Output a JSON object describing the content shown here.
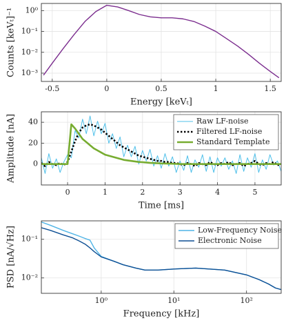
{
  "chart_data": [
    {
      "type": "line",
      "ylog": true,
      "grid": true,
      "xlabel": "Energy [keVₜ]",
      "ylabel": "Counts [keVₜ]⁻¹",
      "x": [
        -0.58,
        -0.5,
        -0.4,
        -0.3,
        -0.2,
        -0.1,
        0,
        0.1,
        0.2,
        0.3,
        0.4,
        0.5,
        0.6,
        0.7,
        0.8,
        0.9,
        1.0,
        1.1,
        1.2,
        1.3,
        1.4,
        1.5,
        1.58
      ],
      "series": [
        {
          "color": "#7b2d8e",
          "linewidth": 1.4,
          "values": [
            0.0008,
            0.003,
            0.015,
            0.07,
            0.3,
            0.9,
            1.8,
            1.5,
            1.0,
            0.65,
            0.5,
            0.45,
            0.45,
            0.4,
            0.3,
            0.18,
            0.1,
            0.045,
            0.02,
            0.008,
            0.003,
            0.0012,
            0.0006
          ]
        }
      ],
      "xlim": [
        -0.6,
        1.6
      ],
      "xticks": [
        -0.5,
        0,
        0.5,
        1,
        1.5
      ],
      "ylim": [
        0.0004,
        2.2
      ],
      "yticks": [
        {
          "value": 0.001,
          "label": "10⁻³"
        },
        {
          "value": 0.01,
          "label": "10⁻²"
        },
        {
          "value": 0.1,
          "label": "10⁻¹"
        },
        {
          "value": 1,
          "label": "10⁰"
        }
      ]
    },
    {
      "type": "line",
      "grid": true,
      "legend": "upper right",
      "xlabel": "Time [ms]",
      "ylabel": "Amplitude [nA]",
      "x": [
        -0.7,
        -0.6,
        -0.5,
        -0.4,
        -0.3,
        -0.2,
        -0.1,
        0.0,
        0.1,
        0.2,
        0.3,
        0.4,
        0.5,
        0.6,
        0.7,
        0.8,
        0.9,
        1.0,
        1.1,
        1.2,
        1.3,
        1.4,
        1.5,
        1.6,
        1.7,
        1.8,
        1.9,
        2.0,
        2.1,
        2.2,
        2.3,
        2.4,
        2.5,
        2.6,
        2.7,
        2.8,
        2.9,
        3.0,
        3.1,
        3.2,
        3.3,
        3.4,
        3.5,
        3.6,
        3.7,
        3.8,
        3.9,
        4.0,
        4.1,
        4.2,
        4.3,
        4.4,
        4.5,
        4.6,
        4.7,
        4.8,
        4.9,
        5.0,
        5.1,
        5.2,
        5.3,
        5.4,
        5.5,
        5.6,
        5.7
      ],
      "series": [
        {
          "name": "Raw LF-noise",
          "color": "#4fc0ea",
          "linewidth": 1,
          "values": [
            6,
            -9,
            10,
            -4,
            5,
            -8,
            2,
            9,
            6,
            32,
            25,
            43,
            29,
            46,
            27,
            41,
            29,
            39,
            20,
            29,
            15,
            26,
            7,
            18,
            7,
            17,
            0,
            13,
            3,
            14,
            -2,
            8,
            -4,
            10,
            -2,
            7,
            -8,
            3,
            -6,
            8,
            -8,
            4,
            -3,
            9,
            -7,
            7,
            -8,
            6,
            -2,
            6,
            -5,
            3,
            -9,
            9,
            -7,
            6,
            -3,
            10,
            -8,
            4,
            -5,
            9,
            -1,
            3,
            -7
          ]
        },
        {
          "name": "Filtered LF-noise",
          "color": "#000000",
          "linewidth": 2.6,
          "linestyle": "dotted",
          "values": [
            1,
            -2,
            2,
            0,
            -1,
            1,
            -1,
            2,
            12,
            22,
            30,
            35,
            37,
            38,
            37,
            35,
            33,
            30,
            27,
            24,
            21,
            18,
            16,
            14,
            12,
            10,
            8,
            7,
            6,
            5,
            4,
            3,
            3,
            2,
            2,
            1,
            1,
            0,
            -1,
            1,
            0,
            -2,
            1,
            0,
            -1,
            2,
            0,
            -1,
            1,
            0,
            2,
            -1,
            0,
            1,
            -2,
            0,
            1,
            3,
            0,
            -1,
            1,
            0,
            2,
            -1,
            0
          ]
        },
        {
          "name": "Standard Template",
          "color": "#77ac30",
          "linewidth": 2.6,
          "values": [
            0,
            0,
            0,
            0,
            0,
            0,
            0,
            0,
            38,
            34,
            29,
            24,
            21,
            18,
            15,
            13,
            11,
            9,
            8,
            7,
            6,
            5,
            4,
            3.5,
            3,
            2.5,
            2,
            1.8,
            1.5,
            1.2,
            1,
            0.8,
            0.6,
            0.5,
            0.4,
            0.3,
            0.2,
            0,
            0,
            0,
            0,
            0,
            0,
            0,
            0,
            0,
            0,
            0,
            0,
            0,
            0,
            0,
            0,
            0,
            0,
            0,
            0,
            0,
            0,
            0,
            0,
            0,
            0,
            0,
            0
          ]
        }
      ],
      "xlim": [
        -0.7,
        5.7
      ],
      "xticks": [
        0,
        1,
        2,
        3,
        4,
        5
      ],
      "ylim": [
        -20,
        50
      ],
      "yticks": [
        0,
        20,
        40
      ]
    },
    {
      "type": "line",
      "xlog": true,
      "ylog": true,
      "grid": true,
      "legend": "upper right",
      "xlabel": "Frequency [kHz]",
      "ylabel": "PSD [nA/√Hz]",
      "x": [
        0.15,
        0.2,
        0.3,
        0.4,
        0.5,
        0.6,
        0.7,
        0.8,
        1,
        1.5,
        2,
        3,
        4,
        6,
        10,
        20,
        50,
        100,
        150,
        200,
        250,
        300
      ],
      "series": [
        {
          "name": "Low-Frequency Noise",
          "color": "#4fb4e6",
          "linewidth": 1.4,
          "values": [
            0.28,
            0.23,
            0.17,
            0.14,
            0.12,
            0.105,
            0.095,
            0.06,
            0.036,
            0.027,
            0.022,
            0.018,
            0.016,
            0.016,
            0.017,
            0.018,
            0.016,
            0.012,
            0.009,
            0.007,
            0.0055,
            0.005
          ]
        },
        {
          "name": "Electronic Noise",
          "color": "#0d4f94",
          "linewidth": 1.4,
          "values": [
            0.2,
            0.17,
            0.13,
            0.11,
            0.09,
            0.075,
            0.06,
            0.048,
            0.035,
            0.027,
            0.022,
            0.018,
            0.016,
            0.016,
            0.017,
            0.018,
            0.016,
            0.012,
            0.009,
            0.007,
            0.0055,
            0.005
          ]
        }
      ],
      "xlim": [
        0.15,
        300
      ],
      "xticks": [
        {
          "value": 1,
          "label": "10⁰"
        },
        {
          "value": 10,
          "label": "10¹"
        },
        {
          "value": 100,
          "label": "10²"
        }
      ],
      "ylim": [
        0.004,
        0.3
      ],
      "yticks": [
        {
          "value": 0.01,
          "label": "10⁻²"
        },
        {
          "value": 0.1,
          "label": "10⁻¹"
        }
      ]
    }
  ]
}
